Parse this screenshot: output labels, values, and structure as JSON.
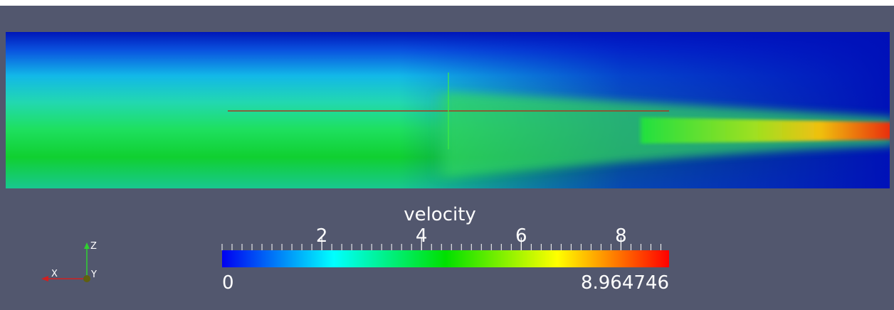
{
  "colorbar": {
    "title": "velocity",
    "range": [
      0,
      8.964746
    ],
    "ticks": [
      2,
      4,
      6,
      8
    ]
  },
  "axes": {
    "x": "X",
    "y": "Y",
    "z": "Z"
  }
}
